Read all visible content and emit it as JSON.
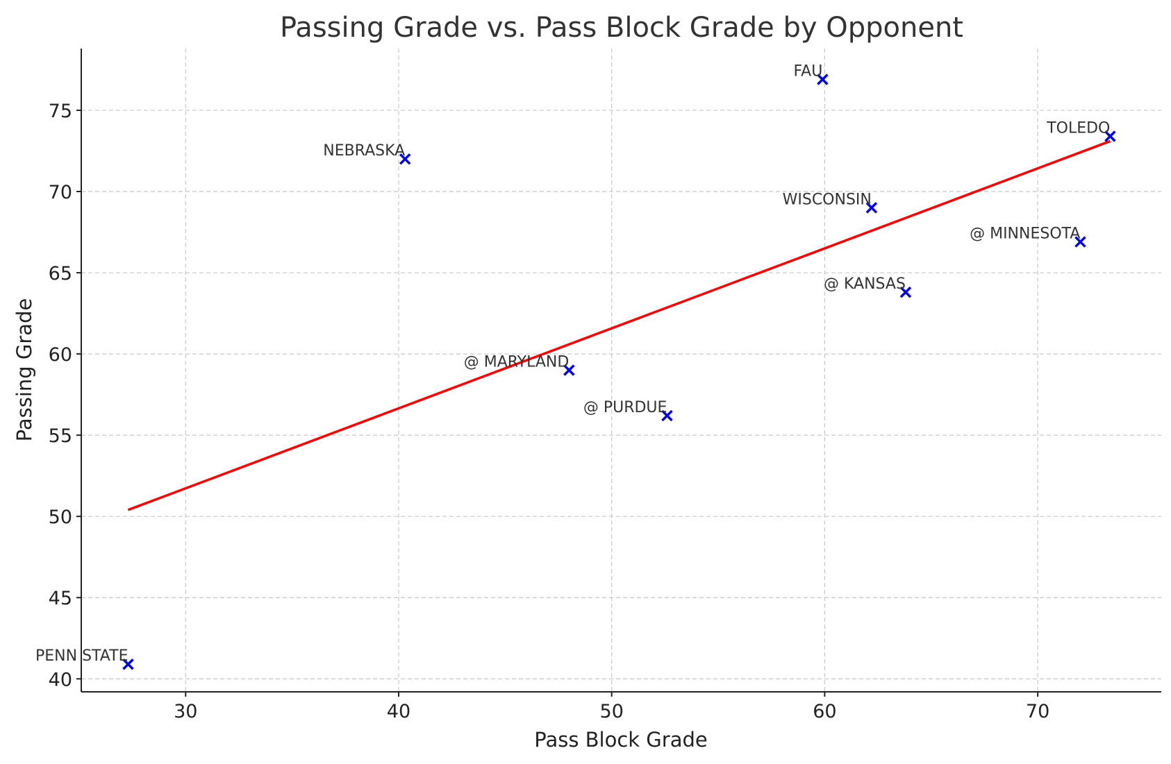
{
  "chart_data": {
    "type": "scatter",
    "title": "Passing Grade vs. Pass Block Grade by Opponent",
    "xlabel": "Pass Block Grade",
    "ylabel": "Passing Grade",
    "xlim": [
      25.1,
      75.8
    ],
    "ylim": [
      39.2,
      78.8
    ],
    "xticks": [
      30,
      40,
      50,
      60,
      70
    ],
    "yticks": [
      40,
      45,
      50,
      55,
      60,
      65,
      70,
      75
    ],
    "grid": true,
    "marker_color": "#0000ff",
    "trend_color": "#ff0000",
    "points": [
      {
        "label": "PENN STATE",
        "x": 27.3,
        "y": 40.9
      },
      {
        "label": "NEBRASKA",
        "x": 40.3,
        "y": 72.0
      },
      {
        "label": "@ MARYLAND",
        "x": 48.0,
        "y": 59.0
      },
      {
        "label": "@ PURDUE",
        "x": 52.6,
        "y": 56.2
      },
      {
        "label": "FAU",
        "x": 59.9,
        "y": 76.9
      },
      {
        "label": "WISCONSIN",
        "x": 62.2,
        "y": 69.0
      },
      {
        "label": "@ KANSAS",
        "x": 63.8,
        "y": 63.8
      },
      {
        "label": "@ MINNESOTA",
        "x": 72.0,
        "y": 66.9
      },
      {
        "label": "TOLEDO",
        "x": 73.4,
        "y": 73.4
      }
    ],
    "trendline": {
      "x": [
        27.3,
        73.4
      ],
      "y": [
        50.4,
        73.1
      ]
    }
  }
}
